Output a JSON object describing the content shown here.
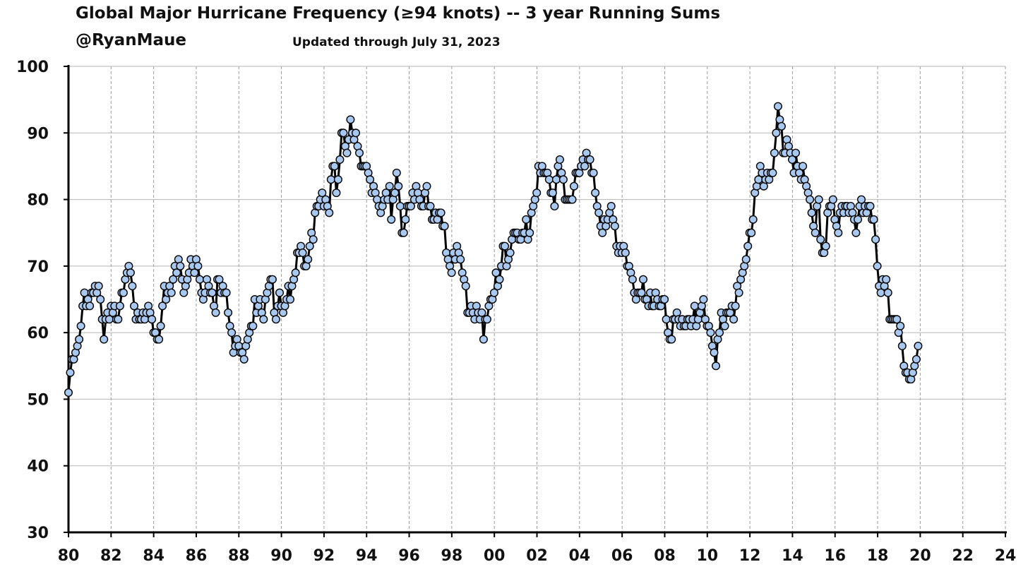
{
  "chart_data": {
    "type": "line",
    "title": "Global Major Hurricane Frequency (≥94 knots)  -- 3 year Running Sums",
    "author": "@RyanMaue",
    "subtitle": "Updated through July 31, 2023",
    "xlabel": "",
    "ylabel": "",
    "xlim": [
      1980,
      2024
    ],
    "ylim": [
      30,
      100
    ],
    "x_ticks": [
      "80",
      "82",
      "84",
      "86",
      "88",
      "90",
      "92",
      "94",
      "96",
      "98",
      "00",
      "02",
      "04",
      "06",
      "08",
      "10",
      "12",
      "14",
      "16",
      "18",
      "20",
      "22",
      "24"
    ],
    "y_ticks": [
      "30",
      "40",
      "50",
      "60",
      "70",
      "80",
      "90",
      "100"
    ],
    "grid": true,
    "line_color": "#000000",
    "marker_color": "#a9c8ef",
    "series": [
      {
        "name": "3-year running sum",
        "x_start": 1980.0,
        "x_step": 0.0833,
        "values": [
          51,
          54,
          56,
          56,
          57,
          58,
          59,
          61,
          64,
          66,
          64,
          65,
          64,
          66,
          66,
          67,
          66,
          67,
          65,
          62,
          59,
          62,
          63,
          62,
          64,
          63,
          64,
          62,
          62,
          64,
          66,
          66,
          68,
          69,
          70,
          69,
          67,
          64,
          62,
          63,
          62,
          62,
          63,
          62,
          63,
          64,
          63,
          62,
          60,
          60,
          59,
          59,
          61,
          64,
          67,
          65,
          66,
          67,
          66,
          68,
          70,
          69,
          71,
          70,
          68,
          66,
          67,
          68,
          69,
          71,
          70,
          69,
          71,
          70,
          68,
          66,
          65,
          66,
          68,
          67,
          66,
          66,
          64,
          63,
          68,
          68,
          66,
          67,
          66,
          66,
          63,
          61,
          60,
          57,
          58,
          59,
          58,
          57,
          57,
          56,
          58,
          59,
          60,
          61,
          61,
          65,
          63,
          64,
          65,
          63,
          62,
          65,
          66,
          67,
          68,
          68,
          63,
          62,
          64,
          66,
          64,
          63,
          64,
          65,
          67,
          65,
          67,
          68,
          69,
          72,
          72,
          73,
          72,
          70,
          70,
          71,
          73,
          75,
          74,
          78,
          79,
          79,
          80,
          81,
          79,
          80,
          79,
          78,
          83,
          85,
          85,
          81,
          83,
          86,
          90,
          90,
          88,
          87,
          89,
          92,
          90,
          89,
          90,
          88,
          87,
          85,
          85,
          85,
          85,
          84,
          83,
          81,
          82,
          81,
          80,
          79,
          78,
          79,
          80,
          81,
          80,
          82,
          77,
          80,
          81,
          84,
          82,
          79,
          75,
          75,
          77,
          79,
          79,
          79,
          81,
          80,
          82,
          81,
          80,
          79,
          79,
          81,
          82,
          79,
          79,
          77,
          77,
          78,
          77,
          78,
          78,
          76,
          76,
          72,
          71,
          70,
          69,
          72,
          71,
          73,
          72,
          71,
          69,
          68,
          67,
          63,
          63,
          64,
          63,
          62,
          64,
          63,
          62,
          63,
          59,
          62,
          62,
          64,
          65,
          65,
          66,
          69,
          67,
          68,
          70,
          73,
          73,
          70,
          71,
          72,
          74,
          75,
          75,
          75,
          74,
          74,
          75,
          75,
          77,
          74,
          75,
          78,
          79,
          80,
          81,
          85,
          84,
          85,
          84,
          84,
          84,
          83,
          81,
          81,
          79,
          83,
          85,
          86,
          84,
          83,
          80,
          80,
          80,
          80,
          80,
          82,
          84,
          84,
          84,
          85,
          86,
          85,
          87,
          86,
          86,
          84,
          84,
          81,
          79,
          78,
          76,
          75,
          77,
          76,
          77,
          78,
          79,
          77,
          76,
          73,
          72,
          73,
          72,
          73,
          72,
          70,
          70,
          69,
          68,
          66,
          65,
          66,
          66,
          66,
          68,
          65,
          65,
          64,
          66,
          64,
          64,
          66,
          65,
          64,
          64,
          65,
          65,
          62,
          60,
          59,
          59,
          62,
          62,
          63,
          62,
          61,
          62,
          61,
          61,
          62,
          62,
          61,
          62,
          64,
          61,
          62,
          63,
          64,
          65,
          62,
          61,
          61,
          60,
          58,
          57,
          55,
          59,
          60,
          63,
          62,
          61,
          63,
          63,
          63,
          64,
          62,
          64,
          67,
          66,
          68,
          69,
          70,
          71,
          73,
          75,
          75,
          77,
          81,
          82,
          83,
          85,
          84,
          82,
          83,
          84,
          83,
          84,
          84,
          87,
          90,
          94,
          92,
          91,
          87,
          87,
          89,
          88,
          87,
          86,
          84,
          87,
          85,
          84,
          83,
          85,
          83,
          82,
          81,
          80,
          78,
          76,
          75,
          79,
          80,
          74,
          72,
          72,
          73,
          78,
          79,
          79,
          80,
          77,
          76,
          75,
          78,
          79,
          78,
          79,
          79,
          78,
          79,
          78,
          77,
          75,
          77,
          79,
          80,
          78,
          79,
          78,
          79,
          79,
          77,
          77,
          74,
          70,
          67,
          66,
          68,
          67,
          68,
          66,
          62,
          62,
          62,
          62,
          62,
          60,
          61,
          58,
          55,
          54,
          54,
          53,
          53,
          54,
          55,
          56,
          58
        ]
      }
    ]
  }
}
